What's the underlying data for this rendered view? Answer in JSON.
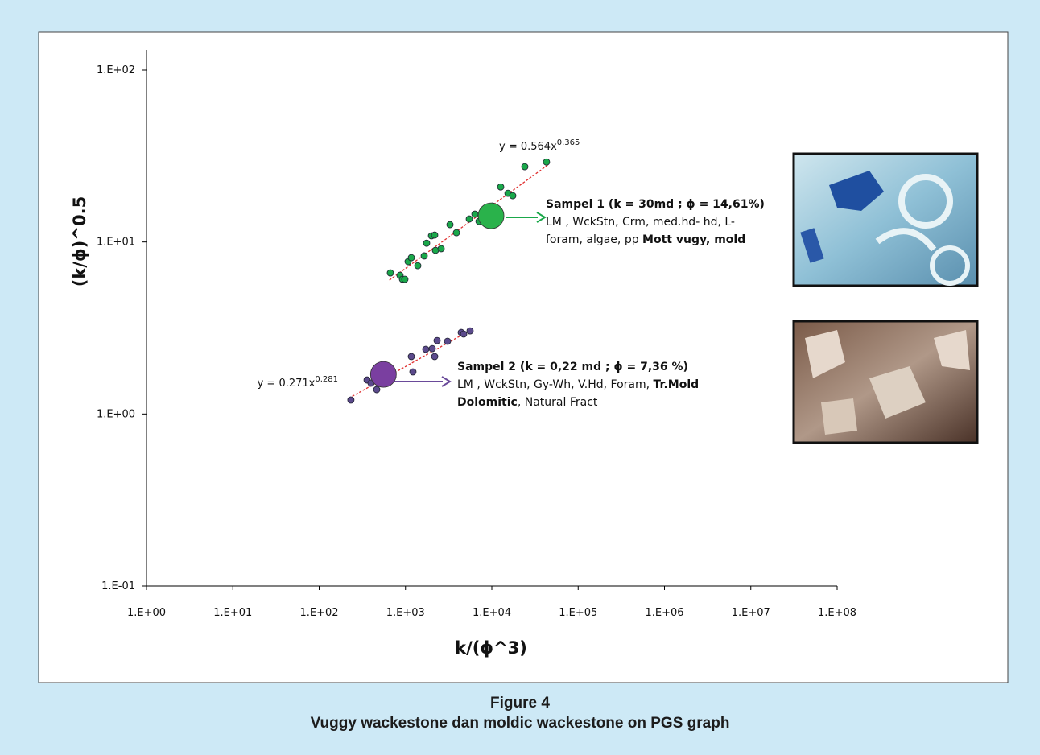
{
  "chart_data": {
    "type": "scatter",
    "x_label": "k/(ϕ^3)",
    "y_label": "(k/ϕ)^0.5",
    "xscale": "log",
    "yscale": "log",
    "xlim": [
      1,
      100000000
    ],
    "ylim": [
      0.1,
      100
    ],
    "xticks": [
      {
        "value": 1,
        "label": "1.E+00"
      },
      {
        "value": 10,
        "label": "1.E+01"
      },
      {
        "value": 100,
        "label": "1.E+02"
      },
      {
        "value": 1000,
        "label": "1.E+03"
      },
      {
        "value": 10000,
        "label": "1.E+04"
      },
      {
        "value": 100000,
        "label": "1.E+05"
      },
      {
        "value": 1000000,
        "label": "1.E+06"
      },
      {
        "value": 10000000,
        "label": "1.E+07"
      },
      {
        "value": 100000000,
        "label": "1.E+08"
      }
    ],
    "yticks": [
      {
        "value": 0.1,
        "label": "1.E-01"
      },
      {
        "value": 1,
        "label": "1.E+00"
      },
      {
        "value": 10,
        "label": "1.E+01"
      },
      {
        "value": 100,
        "label": "1.E+02"
      }
    ],
    "series": [
      {
        "color": "#1aa84a",
        "x": [
          668,
          865,
          923,
          984,
          1072,
          1169,
          1388,
          1648,
          1757,
          2000,
          2178,
          2225,
          2587,
          3275,
          3890,
          5483,
          6370,
          7100,
          8430,
          9190,
          9580,
          10200,
          12670,
          15380,
          17480,
          24100,
          43000
        ],
        "y": [
          6.61,
          6.4,
          6.07,
          6.07,
          7.69,
          8.11,
          7.28,
          8.3,
          9.84,
          10.86,
          10.97,
          8.94,
          9.14,
          12.62,
          11.32,
          13.61,
          14.52,
          13.18,
          14.83,
          16.0,
          15.17,
          16.18,
          20.9,
          19.2,
          18.6,
          27.4,
          29.2
        ]
      },
      {
        "color": "#5b4a8c",
        "x": [
          233,
          359,
          399,
          464,
          528,
          588,
          713,
          1169,
          1219,
          1718,
          2042,
          2178,
          2323,
          3070,
          4424,
          4721,
          5600
        ],
        "y": [
          1.205,
          1.577,
          1.511,
          1.386,
          1.647,
          1.738,
          1.647,
          2.157,
          1.758,
          2.377,
          2.4,
          2.157,
          2.673,
          2.648,
          2.978,
          2.917,
          3.041
        ]
      }
    ],
    "highlights": [
      {
        "x": 9800,
        "y": 14.2,
        "color": "#2ab24b"
      },
      {
        "x": 555,
        "y": 1.7,
        "color": "#7a3fa0"
      }
    ],
    "fits": [
      {
        "label": "y = 0.564x",
        "exponent": "0.365",
        "coef": 0.564,
        "power": 0.365,
        "xrange": [
          650,
          45000
        ]
      },
      {
        "label": "y = 0.271x",
        "exponent": "0.281",
        "coef": 0.271,
        "power": 0.281,
        "xrange": [
          220,
          6000
        ]
      }
    ],
    "annotations": [
      {
        "lines": [
          [
            {
              "text": "Sampel 1 (k = 30md ; ϕ = 14,61%)",
              "bold": true
            }
          ],
          [
            {
              "text": "LM , WckStn, Crm, med.hd- hd, L-",
              "bold": false
            }
          ],
          [
            {
              "text": "foram, algae, pp ",
              "bold": false
            },
            {
              "text": "Mott vugy,  mold",
              "bold": true
            }
          ]
        ]
      },
      {
        "lines": [
          [
            {
              "text": "Sampel 2 (k = 0,22 md ; ϕ = 7,36 %)",
              "bold": true
            }
          ],
          [
            {
              "text": "LM , WckStn, Gy-Wh, V.Hd, Foram, ",
              "bold": false
            },
            {
              "text": "Tr.Mold",
              "bold": true
            }
          ],
          [
            {
              "text": "Dolomitic",
              "bold": true
            },
            {
              "text": ", Natural Fract",
              "bold": false
            }
          ]
        ]
      }
    ]
  },
  "caption": {
    "label": "Figure 4",
    "text": "Vuggy wackestone dan moldic wackestone on PGS graph"
  }
}
